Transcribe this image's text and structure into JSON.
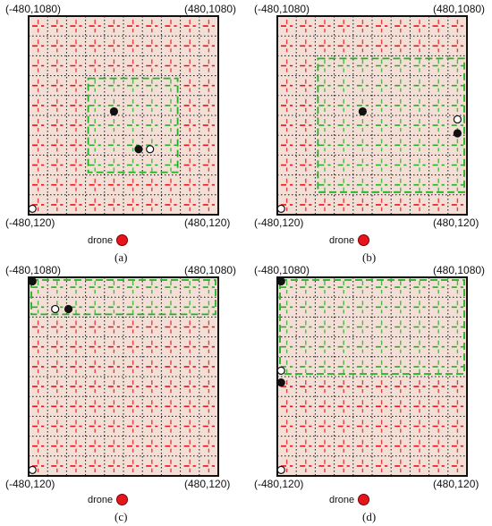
{
  "legend_label": "drone",
  "colors": {
    "red_path": "#e8141c",
    "green_path": "#22b022",
    "background": "#f3dfd6",
    "grid": "#111111"
  },
  "panels": [
    {
      "id": "a",
      "caption": "(a)",
      "top_left": "(-480,1080)",
      "top_right": "(480,1080)",
      "bottom_left": "(-480,120)",
      "bottom_right": "(480,120)"
    },
    {
      "id": "b",
      "caption": "(b)",
      "top_left": "(-480,1080)",
      "top_right": "(480,1080)",
      "bottom_left": "(-480,120)",
      "bottom_right": "(480,120)"
    },
    {
      "id": "c",
      "caption": "(c)",
      "top_left": "(-480,1080)",
      "top_right": "(480,1080)",
      "bottom_left": "(-480,120)",
      "bottom_right": "(480,120)"
    },
    {
      "id": "d",
      "caption": "(d)",
      "top_left": "(-480,1080)",
      "top_right": "(480,1080)",
      "bottom_left": "(-480,120)",
      "bottom_right": "(480,120)"
    }
  ]
}
